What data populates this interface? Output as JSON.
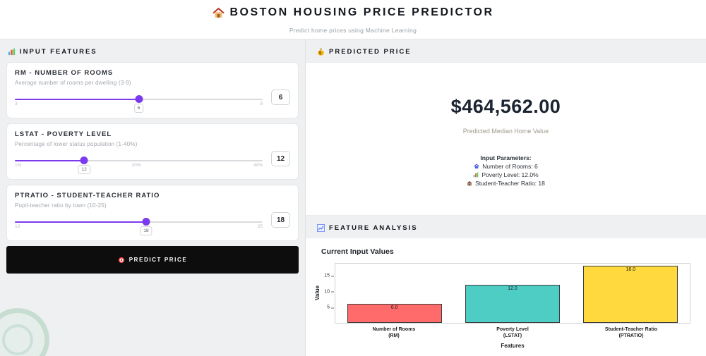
{
  "header": {
    "icon": "house-icon",
    "title": "BOSTON HOUSING PRICE PREDICTOR",
    "subtitle": "Predict home prices using Machine Learning"
  },
  "inputs": {
    "icon": "bar-chart-icon",
    "section_title": "INPUT FEATURES",
    "sliders": [
      {
        "title": "RM - NUMBER OF ROOMS",
        "description": "Average number of rooms per dwelling (3-9)",
        "min_label": "3",
        "mid_label": "",
        "max_label": "9",
        "value": "6",
        "percent": 50
      },
      {
        "title": "LSTAT - POVERTY LEVEL",
        "description": "Percentage of lower status population (1-40%)",
        "min_label": "1%",
        "mid_label": "20%",
        "max_label": "40%",
        "value": "12",
        "percent": 28
      },
      {
        "title": "PTRATIO - STUDENT-TEACHER RATIO",
        "description": "Pupil-teacher ratio by town (10-25)",
        "min_label": "10",
        "mid_label": "",
        "max_label": "25",
        "value": "18",
        "percent": 53
      }
    ],
    "predict_button": {
      "icon": "target-icon",
      "label": "PREDICT PRICE"
    }
  },
  "prediction": {
    "icon": "money-bag-icon",
    "section_title": "PREDICTED PRICE",
    "price": "$464,562.00",
    "caption": "Predicted Median Home Value",
    "params_title": "Input Parameters:",
    "params": [
      {
        "icon": "house-icon",
        "text": "Number of Rooms: 6"
      },
      {
        "icon": "bar-chart-icon",
        "text": "Poverty Level: 12.0%"
      },
      {
        "icon": "school-icon",
        "text": "Student-Teacher Ratio: 18"
      }
    ]
  },
  "analysis": {
    "icon": "chart-up-icon",
    "section_title": "FEATURE ANALYSIS",
    "chart_title": "Current Input Values"
  },
  "chart_data": {
    "type": "bar",
    "title": "Current Input Values",
    "categories": [
      {
        "line1": "Number of Rooms",
        "line2": "(RM)"
      },
      {
        "line1": "Poverty Level",
        "line2": "(LSTAT)"
      },
      {
        "line1": "Student-Teacher Ratio",
        "line2": "(PTRATIO)"
      }
    ],
    "values": [
      6.0,
      12.0,
      18.0
    ],
    "bar_labels": [
      "6.0",
      "12.0",
      "18.0"
    ],
    "colors": [
      "#ff6b6b",
      "#4ecdc4",
      "#ffd93d"
    ],
    "bar_border": "#3d3d3d",
    "xlabel": "Features",
    "ylabel": "Value",
    "ylim": [
      0,
      19
    ],
    "yticks": [
      5,
      10,
      15
    ],
    "grid": false,
    "legend": false
  }
}
